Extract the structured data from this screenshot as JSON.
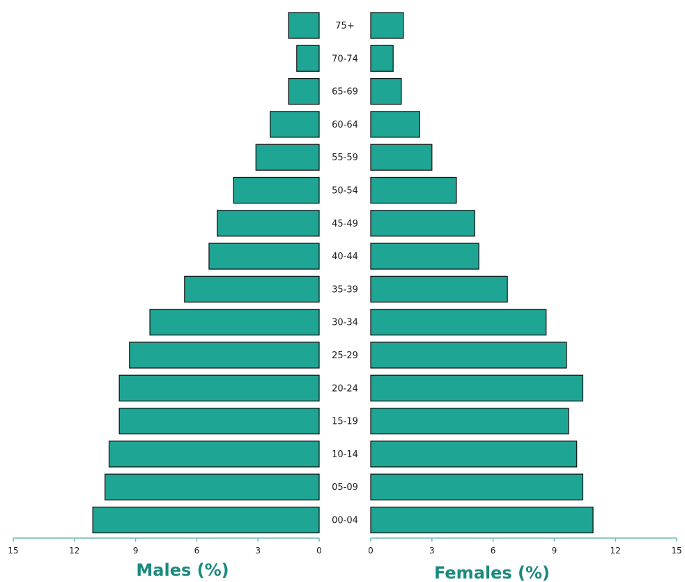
{
  "chart_data": {
    "type": "bar",
    "orientation": "horizontal",
    "layout": "population-pyramid",
    "categories": [
      "75+",
      "70-74",
      "65-69",
      "60-64",
      "55-59",
      "50-54",
      "45-49",
      "40-44",
      "35-39",
      "30-34",
      "25-29",
      "20-24",
      "15-19",
      "10-14",
      "05-09",
      "00-04"
    ],
    "series": [
      {
        "name": "Males (%)",
        "side": "left",
        "values": [
          1.5,
          1.1,
          1.5,
          2.4,
          3.1,
          4.2,
          5.0,
          5.4,
          6.6,
          8.3,
          9.3,
          9.8,
          9.8,
          10.3,
          10.5,
          11.1
        ]
      },
      {
        "name": "Females (%)",
        "side": "right",
        "values": [
          1.6,
          1.1,
          1.5,
          2.4,
          3.0,
          4.2,
          5.1,
          5.3,
          6.7,
          8.6,
          9.6,
          10.4,
          9.7,
          10.1,
          10.4,
          10.9
        ]
      }
    ],
    "xlim": [
      0,
      15
    ],
    "x_ticks": [
      0,
      3,
      6,
      9,
      12,
      15
    ],
    "xlabel_left": "Males (%)",
    "xlabel_right": "Females (%)",
    "grid": false,
    "legend": "none",
    "colors": {
      "bar_fill": "#1fa594",
      "bar_stroke": "#1a1a1a",
      "axis": "#6fb9b1",
      "axis_title": "#1a8a7e"
    }
  }
}
